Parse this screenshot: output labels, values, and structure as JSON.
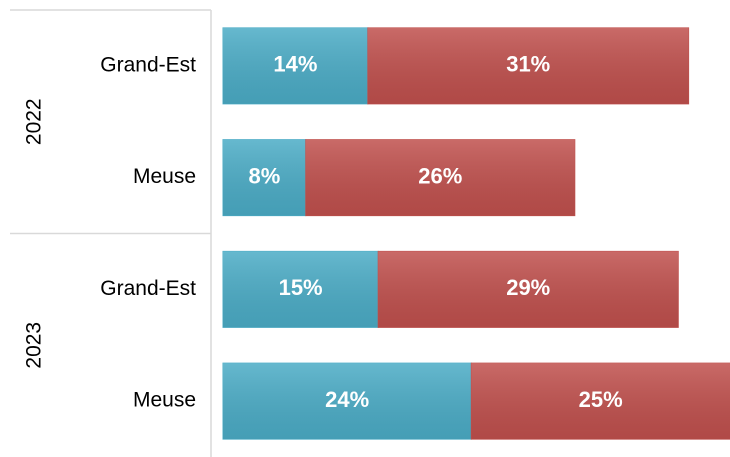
{
  "chart_data": {
    "type": "stacked-hbar",
    "groups": [
      {
        "label": "2022",
        "categories": [
          "Grand-Est",
          "Meuse"
        ]
      },
      {
        "label": "2023",
        "categories": [
          "Grand-Est",
          "Meuse"
        ]
      }
    ],
    "series": [
      {
        "color": "#4bacc6",
        "values": [
          14,
          8,
          15,
          24
        ],
        "value_labels": [
          "14%",
          "8%",
          "15%",
          "24%"
        ]
      },
      {
        "color": "#c0504d",
        "values": [
          31,
          26,
          29,
          25
        ],
        "value_labels": [
          "31%",
          "26%",
          "29%",
          "25%"
        ]
      }
    ]
  }
}
